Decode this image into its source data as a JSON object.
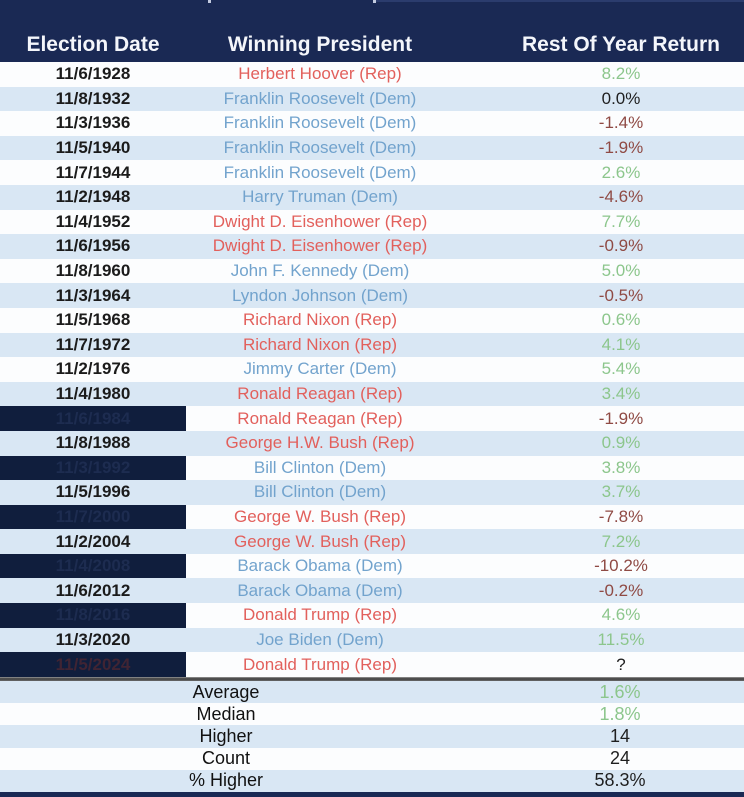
{
  "colors": {
    "navy": "#1a2954",
    "row-white": "#fcfdfe",
    "row-blue": "#d9e7f4",
    "date-ink": "#1b1b1b",
    "rep": "#e2605c",
    "dem": "#72a3cd",
    "pos": "#8cc68c",
    "neg": "#8f4a44",
    "redacted-bg": "#101e3d",
    "redacted-text": "#1d2c50",
    "redacted-maroon": "#402433"
  },
  "chart_data": {
    "type": "table",
    "columns": [
      "Election Date",
      "Winning President",
      "Rest Of Year Return"
    ],
    "rows": [
      {
        "date": "11/6/1928",
        "date_hidden": false,
        "president": "Herbert Hoover (Rep)",
        "party": "Rep",
        "return": "8.2%",
        "tone": "green"
      },
      {
        "date": "11/8/1932",
        "date_hidden": false,
        "president": "Franklin Roosevelt (Dem)",
        "party": "Dem",
        "return": "0.0%",
        "tone": "black"
      },
      {
        "date": "11/3/1936",
        "date_hidden": false,
        "president": "Franklin Roosevelt (Dem)",
        "party": "Dem",
        "return": "-1.4%",
        "tone": "red"
      },
      {
        "date": "11/5/1940",
        "date_hidden": false,
        "president": "Franklin Roosevelt (Dem)",
        "party": "Dem",
        "return": "-1.9%",
        "tone": "red"
      },
      {
        "date": "11/7/1944",
        "date_hidden": false,
        "president": "Franklin Roosevelt (Dem)",
        "party": "Dem",
        "return": "2.6%",
        "tone": "green"
      },
      {
        "date": "11/2/1948",
        "date_hidden": false,
        "president": "Harry Truman (Dem)",
        "party": "Dem",
        "return": "-4.6%",
        "tone": "red"
      },
      {
        "date": "11/4/1952",
        "date_hidden": false,
        "president": "Dwight D. Eisenhower (Rep)",
        "party": "Rep",
        "return": "7.7%",
        "tone": "green"
      },
      {
        "date": "11/6/1956",
        "date_hidden": false,
        "president": "Dwight D. Eisenhower (Rep)",
        "party": "Rep",
        "return": "-0.9%",
        "tone": "red"
      },
      {
        "date": "11/8/1960",
        "date_hidden": false,
        "president": "John F. Kennedy (Dem)",
        "party": "Dem",
        "return": "5.0%",
        "tone": "green"
      },
      {
        "date": "11/3/1964",
        "date_hidden": false,
        "president": "Lyndon Johnson (Dem)",
        "party": "Dem",
        "return": "-0.5%",
        "tone": "red"
      },
      {
        "date": "11/5/1968",
        "date_hidden": false,
        "president": "Richard Nixon (Rep)",
        "party": "Rep",
        "return": "0.6%",
        "tone": "green"
      },
      {
        "date": "11/7/1972",
        "date_hidden": false,
        "president": "Richard Nixon (Rep)",
        "party": "Rep",
        "return": "4.1%",
        "tone": "green"
      },
      {
        "date": "11/2/1976",
        "date_hidden": false,
        "president": "Jimmy Carter (Dem)",
        "party": "Dem",
        "return": "5.4%",
        "tone": "green"
      },
      {
        "date": "11/4/1980",
        "date_hidden": false,
        "president": "Ronald Reagan (Rep)",
        "party": "Rep",
        "return": "3.4%",
        "tone": "green"
      },
      {
        "date": "11/6/1984",
        "date_hidden": true,
        "president": "Ronald Reagan (Rep)",
        "party": "Rep",
        "return": "-1.9%",
        "tone": "red"
      },
      {
        "date": "11/8/1988",
        "date_hidden": false,
        "president": "George H.W. Bush (Rep)",
        "party": "Rep",
        "return": "0.9%",
        "tone": "green"
      },
      {
        "date": "11/3/1992",
        "date_hidden": true,
        "president": "Bill Clinton (Dem)",
        "party": "Dem",
        "return": "3.8%",
        "tone": "green"
      },
      {
        "date": "11/5/1996",
        "date_hidden": false,
        "president": "Bill Clinton (Dem)",
        "party": "Dem",
        "return": "3.7%",
        "tone": "green"
      },
      {
        "date": "11/7/2000",
        "date_hidden": true,
        "president": "George W. Bush (Rep)",
        "party": "Rep",
        "return": "-7.8%",
        "tone": "red"
      },
      {
        "date": "11/2/2004",
        "date_hidden": false,
        "president": "George W. Bush (Rep)",
        "party": "Rep",
        "return": "7.2%",
        "tone": "green"
      },
      {
        "date": "11/4/2008",
        "date_hidden": true,
        "president": "Barack Obama (Dem)",
        "party": "Dem",
        "return": "-10.2%",
        "tone": "red"
      },
      {
        "date": "11/6/2012",
        "date_hidden": false,
        "president": "Barack Obama (Dem)",
        "party": "Dem",
        "return": "-0.2%",
        "tone": "red"
      },
      {
        "date": "11/8/2016",
        "date_hidden": true,
        "president": "Donald Trump (Rep)",
        "party": "Rep",
        "return": "4.6%",
        "tone": "green"
      },
      {
        "date": "11/3/2020",
        "date_hidden": false,
        "president": "Joe Biden (Dem)",
        "party": "Dem",
        "return": "11.5%",
        "tone": "green"
      },
      {
        "date": "11/5/2024",
        "date_hidden": true,
        "hidden_tint": "maroon",
        "president": "Donald Trump (Rep)",
        "party": "Rep",
        "return": "?",
        "tone": "black"
      }
    ],
    "summary": [
      {
        "label": "Average",
        "value": "1.6%",
        "tone": "green"
      },
      {
        "label": "Median",
        "value": "1.8%",
        "tone": "green"
      },
      {
        "label": "Higher",
        "value": "14",
        "tone": "black"
      },
      {
        "label": "Count",
        "value": "24",
        "tone": "black"
      },
      {
        "label": "% Higher",
        "value": "58.3%",
        "tone": "black"
      }
    ]
  }
}
